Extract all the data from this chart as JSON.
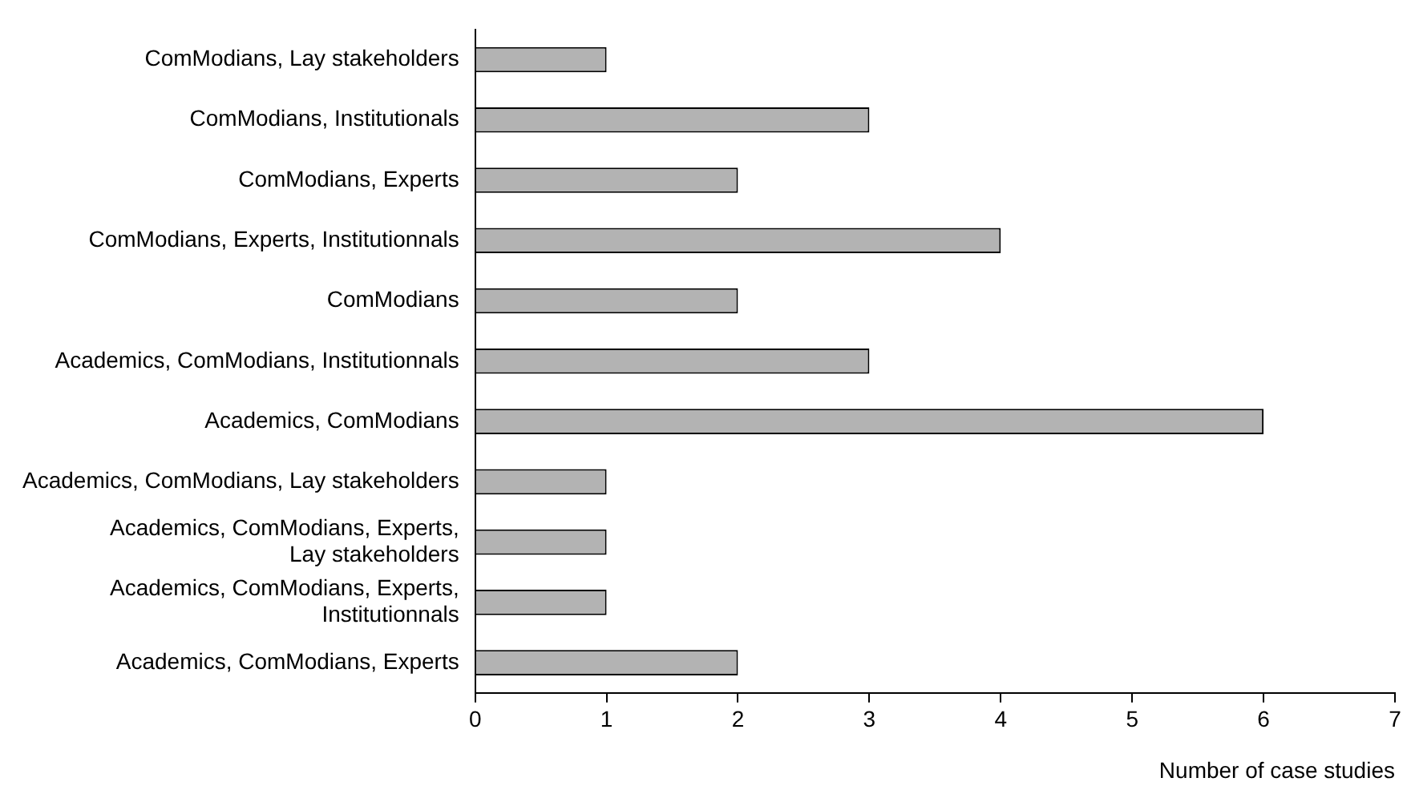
{
  "chart_data": {
    "type": "bar",
    "orientation": "horizontal",
    "categories": [
      "ComModians, Lay stakeholders",
      "ComModians, Institutionals",
      "ComModians, Experts",
      "ComModians, Experts, Institutionnals",
      "ComModians",
      "Academics, ComModians, Institutionnals",
      "Academics, ComModians",
      "Academics, ComModians, Lay stakeholders",
      "Academics, ComModians, Experts, Lay stakeholders",
      "Academics, ComModians, Experts, Institutionnals",
      "Academics, ComModians, Experts"
    ],
    "values": [
      1,
      3,
      2,
      4,
      2,
      3,
      6,
      1,
      1,
      1,
      2
    ],
    "color": "#b3b3b3",
    "xlabel": "Number of case studies",
    "xlim": [
      0,
      7
    ],
    "xticks": [
      0,
      1,
      2,
      3,
      4,
      5,
      6,
      7
    ],
    "grid": false,
    "legend": false
  }
}
